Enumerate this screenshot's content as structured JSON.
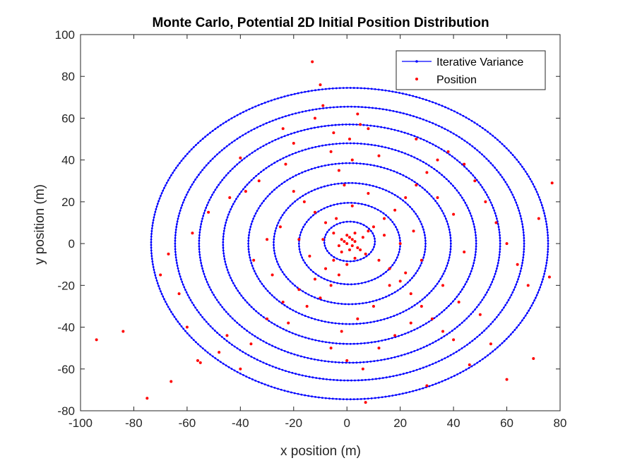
{
  "chart_data": {
    "type": "scatter",
    "title": "Monte Carlo, Potential 2D Initial Position Distribution",
    "xlabel": "x position (m)",
    "ylabel": "y position (m)",
    "xlim": [
      -100,
      80
    ],
    "ylim": [
      -80,
      100
    ],
    "xticks": [
      -100,
      -80,
      -60,
      -40,
      -20,
      0,
      20,
      40,
      60,
      80
    ],
    "yticks": [
      -80,
      -60,
      -40,
      -20,
      0,
      20,
      40,
      60,
      80,
      100
    ],
    "grid": false,
    "legend_position": "top-right",
    "series": [
      {
        "name": "Iterative Variance",
        "style": "line-with-dot-markers",
        "color": "#0000ff",
        "ellipses": [
          {
            "cx": 1,
            "cy": 1,
            "rx": 9.5,
            "ry": 9.5
          },
          {
            "cx": 1,
            "cy": 0,
            "rx": 19,
            "ry": 19.5
          },
          {
            "cx": 1,
            "cy": 0,
            "rx": 28.5,
            "ry": 29
          },
          {
            "cx": 1,
            "cy": 0,
            "rx": 38,
            "ry": 38.5
          },
          {
            "cx": 1,
            "cy": 0,
            "rx": 47.5,
            "ry": 48
          },
          {
            "cx": 1,
            "cy": 0,
            "rx": 56.5,
            "ry": 57
          },
          {
            "cx": 1,
            "cy": 0,
            "rx": 65.5,
            "ry": 65.5
          },
          {
            "cx": 1,
            "cy": 0,
            "rx": 74.5,
            "ry": 74.5
          }
        ]
      },
      {
        "name": "Position",
        "style": "dot-markers",
        "color": "#ff0000",
        "points": [
          [
            -13,
            87
          ],
          [
            -10,
            76
          ],
          [
            -9,
            66
          ],
          [
            -5,
            53
          ],
          [
            5,
            57
          ],
          [
            8,
            55
          ],
          [
            12,
            42
          ],
          [
            -20,
            48
          ],
          [
            -23,
            38
          ],
          [
            -33,
            30
          ],
          [
            -38,
            25
          ],
          [
            -44,
            22
          ],
          [
            -52,
            15
          ],
          [
            -58,
            5
          ],
          [
            -67,
            -5
          ],
          [
            -70,
            -15
          ],
          [
            -63,
            -24
          ],
          [
            -60,
            -40
          ],
          [
            -56,
            -56
          ],
          [
            -48,
            -52
          ],
          [
            -45,
            -44
          ],
          [
            -36,
            -48
          ],
          [
            -30,
            -36
          ],
          [
            -24,
            -28
          ],
          [
            -18,
            -22
          ],
          [
            -12,
            -17
          ],
          [
            -8,
            -12
          ],
          [
            -5,
            -8
          ],
          [
            -2,
            -4
          ],
          [
            0,
            0
          ],
          [
            2,
            2
          ],
          [
            3,
            5
          ],
          [
            4,
            -2
          ],
          [
            6,
            3
          ],
          [
            7,
            -5
          ],
          [
            8,
            6
          ],
          [
            10,
            8
          ],
          [
            12,
            -8
          ],
          [
            14,
            12
          ],
          [
            16,
            -12
          ],
          [
            18,
            16
          ],
          [
            20,
            -18
          ],
          [
            22,
            22
          ],
          [
            24,
            -24
          ],
          [
            26,
            28
          ],
          [
            28,
            -30
          ],
          [
            30,
            34
          ],
          [
            32,
            -36
          ],
          [
            34,
            40
          ],
          [
            36,
            -42
          ],
          [
            38,
            44
          ],
          [
            40,
            -46
          ],
          [
            44,
            38
          ],
          [
            48,
            30
          ],
          [
            52,
            20
          ],
          [
            56,
            10
          ],
          [
            60,
            0
          ],
          [
            64,
            -10
          ],
          [
            68,
            -20
          ],
          [
            72,
            12
          ],
          [
            77,
            29
          ],
          [
            76,
            -16
          ],
          [
            70,
            -55
          ],
          [
            60,
            -65
          ],
          [
            30,
            -68
          ],
          [
            7,
            -76
          ],
          [
            -75,
            -74
          ],
          [
            -66,
            -66
          ],
          [
            -84,
            -42
          ],
          [
            -94,
            -46
          ],
          [
            -55,
            -57
          ],
          [
            -40,
            -60
          ],
          [
            -22,
            -38
          ],
          [
            -15,
            -30
          ],
          [
            -10,
            -26
          ],
          [
            -6,
            -20
          ],
          [
            -3,
            -15
          ],
          [
            0,
            -10
          ],
          [
            3,
            -7
          ],
          [
            5,
            -3
          ],
          [
            -5,
            5
          ],
          [
            -8,
            10
          ],
          [
            -12,
            15
          ],
          [
            -16,
            20
          ],
          [
            -20,
            25
          ],
          [
            -25,
            8
          ],
          [
            -30,
            2
          ],
          [
            -35,
            -8
          ],
          [
            -28,
            -15
          ],
          [
            -18,
            2
          ],
          [
            -14,
            -6
          ],
          [
            -9,
            2
          ],
          [
            -4,
            12
          ],
          [
            2,
            18
          ],
          [
            8,
            24
          ],
          [
            14,
            4
          ],
          [
            20,
            0
          ],
          [
            25,
            6
          ],
          [
            28,
            -8
          ],
          [
            22,
            -14
          ],
          [
            16,
            -20
          ],
          [
            10,
            -30
          ],
          [
            4,
            -36
          ],
          [
            -2,
            -42
          ],
          [
            -6,
            -50
          ],
          [
            0,
            -56
          ],
          [
            6,
            -60
          ],
          [
            12,
            -50
          ],
          [
            18,
            -44
          ],
          [
            24,
            -38
          ],
          [
            -1,
            28
          ],
          [
            -3,
            35
          ],
          [
            2,
            40
          ],
          [
            -6,
            44
          ],
          [
            1,
            50
          ],
          [
            4,
            62
          ],
          [
            -12,
            60
          ],
          [
            -24,
            55
          ],
          [
            -40,
            41
          ],
          [
            26,
            50
          ],
          [
            34,
            22
          ],
          [
            40,
            14
          ],
          [
            44,
            -4
          ],
          [
            36,
            -20
          ],
          [
            42,
            -28
          ],
          [
            50,
            -34
          ],
          [
            54,
            -48
          ],
          [
            46,
            -58
          ],
          [
            1,
            3
          ],
          [
            -1,
            1
          ],
          [
            2,
            -1
          ],
          [
            0,
            4
          ],
          [
            -2,
            2
          ],
          [
            3,
            1
          ],
          [
            1,
            -3
          ],
          [
            -3,
            -1
          ]
        ]
      }
    ]
  }
}
